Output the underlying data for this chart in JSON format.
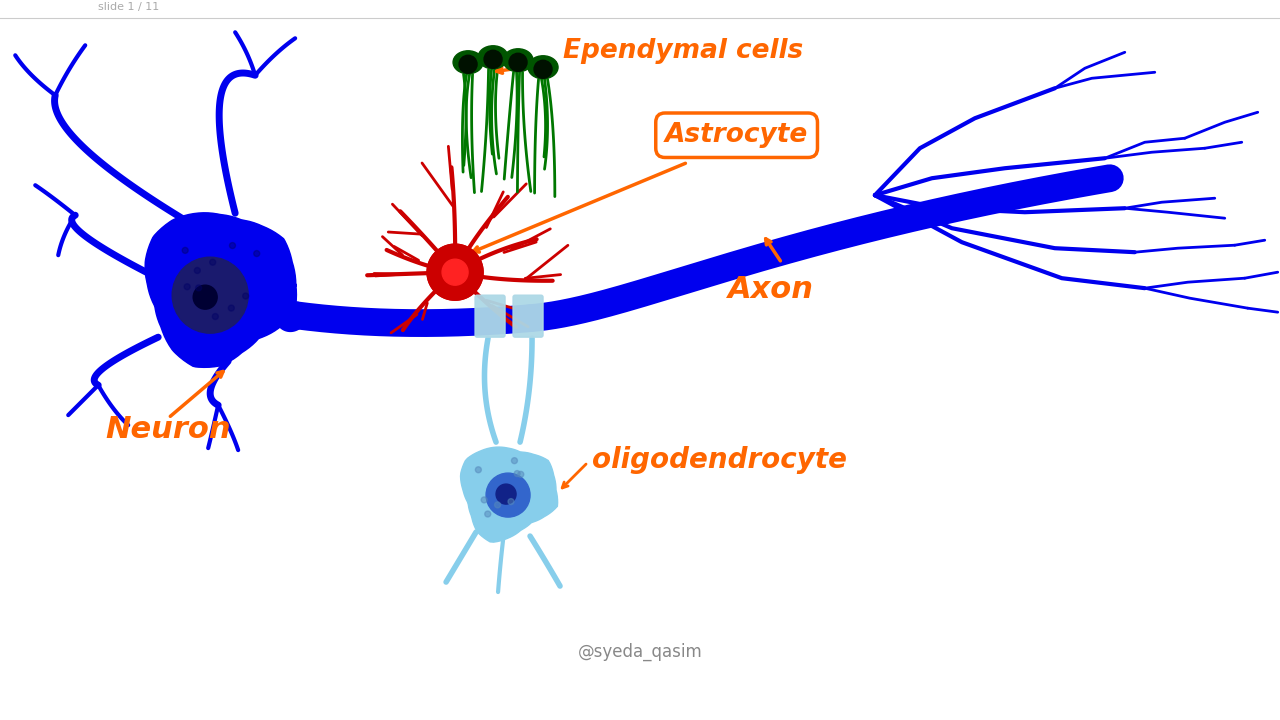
{
  "bg_color": "#ffffff",
  "neuron_color": "#0000ee",
  "neuron_nucleus_color": "#1a1a6e",
  "astrocyte_color": "#cc0000",
  "ependymal_color": "#006600",
  "oligodendrocyte_color": "#87ceeb",
  "axon_color": "#0000ee",
  "label_color": "#ff6600",
  "labels": {
    "ependymal": "Ependymal cells",
    "astrocyte": "Astrocyte",
    "axon": "Axon",
    "neuron": "Neuron",
    "oligodendrocyte": "oligodendrocyte",
    "watermark": "@syeda_qasim",
    "slide": "slide 1 / 11"
  },
  "figsize": [
    12.8,
    7.2
  ],
  "dpi": 100
}
